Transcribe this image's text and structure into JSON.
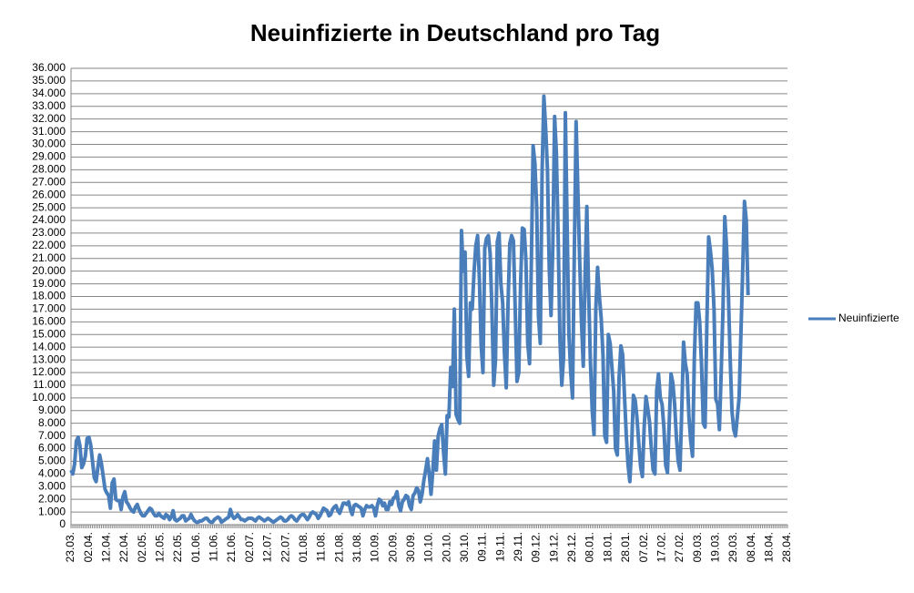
{
  "chart_data": {
    "type": "line",
    "title": "Neuinfizierte in Deutschland pro Tag",
    "categories": [
      "23.03.",
      null,
      null,
      null,
      null,
      null,
      null,
      null,
      null,
      null,
      "02.04.",
      null,
      null,
      null,
      null,
      null,
      null,
      null,
      null,
      null,
      "12.04.",
      null,
      null,
      null,
      null,
      null,
      null,
      null,
      null,
      null,
      "22.04.",
      null,
      null,
      null,
      null,
      null,
      null,
      null,
      null,
      null,
      "02.05.",
      null,
      null,
      null,
      null,
      null,
      null,
      null,
      null,
      null,
      "12.05.",
      null,
      null,
      null,
      null,
      null,
      null,
      null,
      null,
      null,
      "22.05.",
      null,
      null,
      null,
      null,
      null,
      null,
      null,
      null,
      null,
      "01.06.",
      null,
      null,
      null,
      null,
      null,
      null,
      null,
      null,
      null,
      "11.06.",
      null,
      null,
      null,
      null,
      null,
      null,
      null,
      null,
      null,
      "21.06.",
      null,
      null,
      null,
      null,
      null,
      null,
      null,
      null,
      null,
      "02.07.",
      null,
      null,
      null,
      null,
      null,
      null,
      null,
      null,
      null,
      "12.07.",
      null,
      null,
      null,
      null,
      null,
      null,
      null,
      null,
      null,
      "22.07.",
      null,
      null,
      null,
      null,
      null,
      null,
      null,
      null,
      null,
      "01.08.",
      null,
      null,
      null,
      null,
      null,
      null,
      null,
      null,
      null,
      "11.08.",
      null,
      null,
      null,
      null,
      null,
      null,
      null,
      null,
      null,
      "21.08.",
      null,
      null,
      null,
      null,
      null,
      null,
      null,
      null,
      null,
      "31.08.",
      null,
      null,
      null,
      null,
      null,
      null,
      null,
      null,
      null,
      "10.09.",
      null,
      null,
      null,
      null,
      null,
      null,
      null,
      null,
      null,
      "20.09.",
      null,
      null,
      null,
      null,
      null,
      null,
      null,
      null,
      null,
      "30.09.",
      null,
      null,
      null,
      null,
      null,
      null,
      null,
      null,
      null,
      "10.10.",
      null,
      null,
      null,
      null,
      null,
      null,
      null,
      null,
      null,
      "20.10.",
      null,
      null,
      null,
      null,
      null,
      null,
      null,
      null,
      null,
      "30.10.",
      null,
      null,
      null,
      null,
      null,
      null,
      null,
      null,
      null,
      "09.11.",
      null,
      null,
      null,
      null,
      null,
      null,
      null,
      null,
      null,
      "19.11.",
      null,
      null,
      null,
      null,
      null,
      null,
      null,
      null,
      null,
      "29.11.",
      null,
      null,
      null,
      null,
      null,
      null,
      null,
      null,
      null,
      "09.12.",
      null,
      null,
      null,
      null,
      null,
      null,
      null,
      null,
      null,
      "19.12.",
      null,
      null,
      null,
      null,
      null,
      null,
      null,
      null,
      null,
      "29.12.",
      null,
      null,
      null,
      null,
      null,
      null,
      null,
      null,
      null,
      "08.01.",
      null,
      null,
      null,
      null,
      null,
      null,
      null,
      null,
      null,
      "18.01.",
      null,
      null,
      null,
      null,
      null,
      null,
      null,
      null,
      null,
      "28.01.",
      null,
      null,
      null,
      null,
      null,
      null,
      null,
      null,
      null,
      "07.02.",
      null,
      null,
      null,
      null,
      null,
      null,
      null,
      null,
      null,
      "17.02.",
      null,
      null,
      null,
      null,
      null,
      null,
      null,
      null,
      null,
      "27.02.",
      null,
      null,
      null,
      null,
      null,
      null,
      null,
      null,
      null,
      "09.03.",
      null,
      null,
      null,
      null,
      null,
      null,
      null,
      null,
      null,
      "19.03.",
      null,
      null,
      null,
      null,
      null,
      null,
      null,
      null,
      null,
      "29.03.",
      null,
      null,
      null,
      null,
      null,
      null,
      null,
      null,
      null,
      "08.04.",
      null,
      null,
      null,
      null,
      null,
      null,
      null,
      null,
      null,
      "18.04.",
      null,
      null,
      null,
      null,
      null,
      null,
      null,
      null,
      null,
      "28.04."
    ],
    "series": [
      {
        "name": "Neuinfizierte",
        "color": "#4a7ebb",
        "values": [
          4300,
          4000,
          4800,
          6600,
          6900,
          6200,
          4500,
          4800,
          5400,
          6800,
          6900,
          6300,
          5000,
          3700,
          3400,
          4500,
          5500,
          4800,
          3800,
          2800,
          2500,
          2300,
          1300,
          3300,
          3600,
          2000,
          1900,
          1900,
          1200,
          2200,
          2600,
          1800,
          1600,
          1300,
          1100,
          1000,
          1400,
          1600,
          1200,
          900,
          700,
          700,
          900,
          1100,
          1300,
          1200,
          900,
          700,
          700,
          900,
          700,
          600,
          500,
          800,
          700,
          400,
          600,
          1100,
          400,
          300,
          400,
          500,
          700,
          700,
          300,
          400,
          500,
          800,
          500,
          300,
          200,
          200,
          300,
          300,
          400,
          500,
          500,
          300,
          200,
          200,
          400,
          500,
          600,
          500,
          200,
          300,
          400,
          500,
          600,
          1200,
          700,
          500,
          600,
          800,
          600,
          400,
          400,
          300,
          400,
          500,
          500,
          500,
          400,
          300,
          500,
          600,
          500,
          400,
          300,
          400,
          500,
          400,
          300,
          200,
          300,
          400,
          500,
          600,
          500,
          300,
          300,
          400,
          600,
          700,
          600,
          400,
          300,
          500,
          700,
          800,
          800,
          600,
          400,
          600,
          900,
          1000,
          900,
          800,
          500,
          700,
          1000,
          1300,
          1200,
          1100,
          700,
          800,
          1200,
          1400,
          1500,
          1100,
          900,
          1300,
          1700,
          1700,
          1600,
          1800,
          1200,
          800,
          1500,
          1600,
          1500,
          1400,
          1300,
          700,
          1200,
          1500,
          1400,
          1400,
          1500,
          1300,
          700,
          1500,
          2000,
          1900,
          1500,
          1700,
          1200,
          1200,
          1800,
          1600,
          2100,
          2200,
          2600,
          1500,
          1100,
          1800,
          2000,
          2300,
          2200,
          1500,
          1200,
          2300,
          2500,
          2900,
          2700,
          1800,
          2400,
          3500,
          4300,
          5200,
          4000,
          2400,
          4200,
          6600,
          4300,
          7000,
          7600,
          7900,
          5700,
          4000,
          8600,
          8500,
          12400,
          10900,
          17000,
          8700,
          8300,
          8000,
          23200,
          20000,
          21500,
          13300,
          11700,
          17500,
          17000,
          19900,
          22000,
          22800,
          19400,
          14100,
          12000,
          21800,
          22600,
          22800,
          21400,
          16900,
          11000,
          13000,
          22300,
          23000,
          19000,
          17500,
          13500,
          10800,
          17500,
          22200,
          22800,
          22400,
          17000,
          11300,
          12000,
          19000,
          23400,
          23300,
          20800,
          14300,
          12700,
          20600,
          29900,
          28500,
          25000,
          16400,
          14300,
          27700,
          33800,
          31300,
          28000,
          20200,
          16500,
          22000,
          32200,
          29300,
          22500,
          14500,
          11000,
          13200,
          32500,
          23500,
          15000,
          12000,
          10000,
          21400,
          31800,
          26300,
          20800,
          16000,
          12500,
          19600,
          25100,
          18300,
          12800,
          9000,
          7100,
          17000,
          20300,
          18000,
          16300,
          13400,
          7000,
          6500,
          15000,
          14300,
          12400,
          10500,
          6000,
          5500,
          11600,
          14100,
          13400,
          10200,
          7100,
          4700,
          3400,
          6200,
          10200,
          9800,
          8400,
          6400,
          4600,
          3800,
          7700,
          10100,
          9200,
          8100,
          6000,
          4300,
          4000,
          10600,
          11900,
          10000,
          9500,
          7700,
          4700,
          4100,
          8100,
          11900,
          11200,
          9500,
          6900,
          5000,
          4300,
          9100,
          14400,
          12700,
          11900,
          8500,
          6600,
          5400,
          13100,
          17500,
          17500,
          16000,
          12700,
          8000,
          7700,
          15800,
          22700,
          21600,
          20100,
          17000,
          9900,
          9500,
          7500,
          12000,
          17000,
          24300,
          21900,
          18300,
          13200,
          9000,
          7500,
          7000,
          8500,
          10000,
          15000,
          20000,
          25500,
          24000,
          18100,
          null,
          null,
          null,
          null,
          null,
          null,
          null,
          null,
          null,
          null,
          null,
          null,
          null,
          null,
          null,
          null,
          null,
          null,
          null,
          null,
          null,
          null
        ]
      }
    ],
    "ylim": [
      0,
      36000
    ],
    "yticks": [
      0,
      {
        "value": 1000,
        "label": "1.000"
      },
      {
        "value": 2000,
        "label": "2.000"
      },
      {
        "value": 3000,
        "label": "3.000"
      },
      {
        "value": 4000,
        "label": "4.000"
      },
      {
        "value": 5000,
        "label": "5.000"
      },
      {
        "value": 6000,
        "label": "6.000"
      },
      {
        "value": 7000,
        "label": "7.000"
      },
      {
        "value": 8000,
        "label": "8.000"
      },
      {
        "value": 9000,
        "label": "9.000"
      },
      {
        "value": 10000,
        "label": "10.000"
      },
      {
        "value": 11000,
        "label": "11.000"
      },
      {
        "value": 12000,
        "label": "12.000"
      },
      {
        "value": 13000,
        "label": "13.000"
      },
      {
        "value": 14000,
        "label": "14.000"
      },
      {
        "value": 15000,
        "label": "15.000"
      },
      {
        "value": 16000,
        "label": "16.000"
      },
      {
        "value": 17000,
        "label": "17.000"
      },
      {
        "value": 18000,
        "label": "18.000"
      },
      {
        "value": 19000,
        "label": "19.000"
      },
      {
        "value": 20000,
        "label": "20.000"
      },
      {
        "value": 21000,
        "label": "21.000"
      },
      {
        "value": 22000,
        "label": "22.000"
      },
      {
        "value": 23000,
        "label": "23.000"
      },
      {
        "value": 24000,
        "label": "24.000"
      },
      {
        "value": 25000,
        "label": "25.000"
      },
      {
        "value": 26000,
        "label": "26.000"
      },
      {
        "value": 27000,
        "label": "27.000"
      },
      {
        "value": 28000,
        "label": "28.000"
      },
      {
        "value": 29000,
        "label": "29.000"
      },
      {
        "value": 30000,
        "label": "30.000"
      },
      {
        "value": 31000,
        "label": "31.000"
      },
      {
        "value": 32000,
        "label": "32.000"
      },
      {
        "value": 33000,
        "label": "33.000"
      },
      {
        "value": 34000,
        "label": "34.000"
      },
      {
        "value": 35000,
        "label": "35.000"
      },
      {
        "value": 36000,
        "label": "36.000"
      }
    ],
    "grid": true,
    "legend": "right"
  }
}
